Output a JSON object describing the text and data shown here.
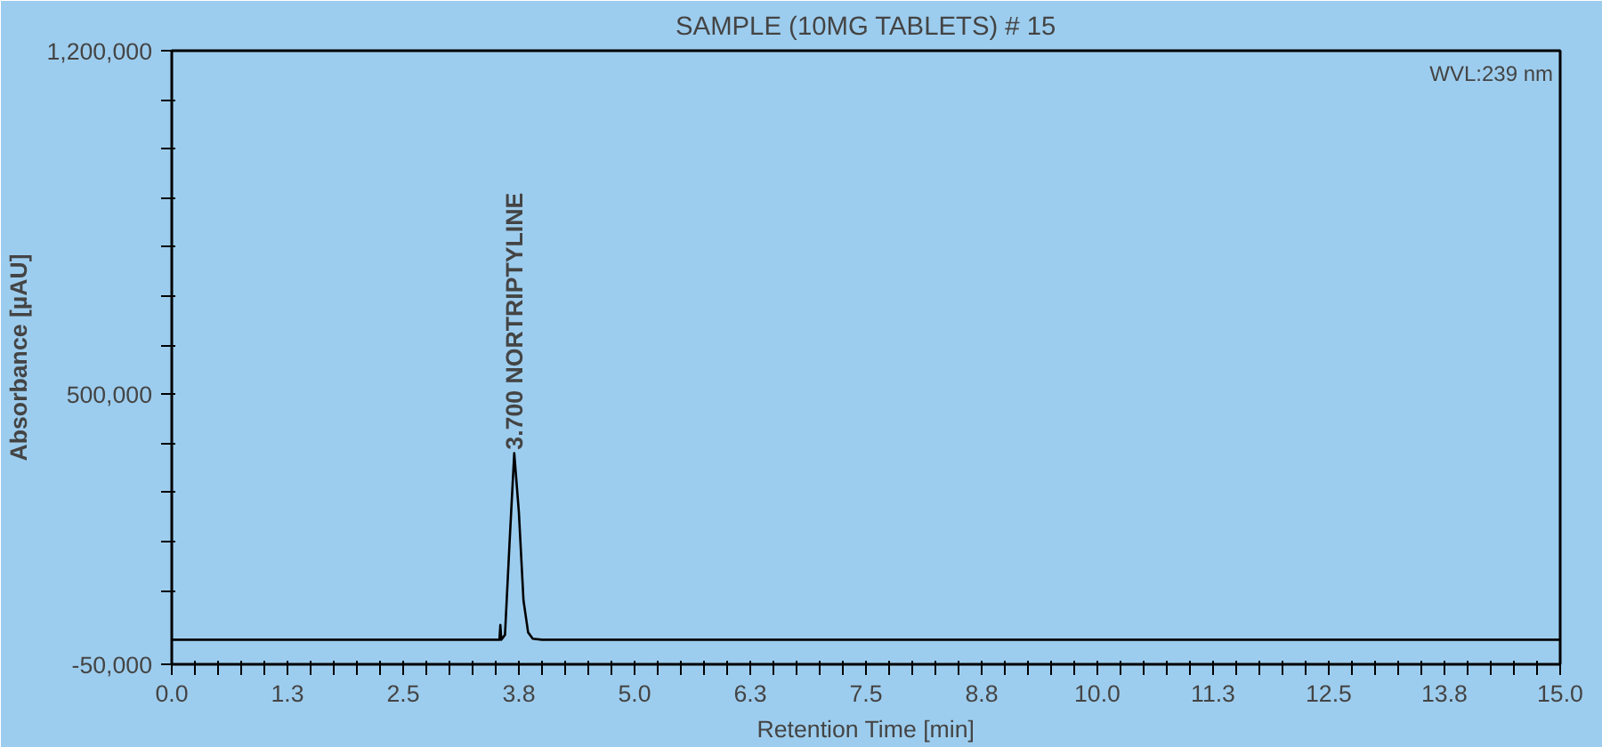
{
  "chart_data": {
    "type": "line",
    "title": "SAMPLE (10MG TABLETS) # 15",
    "xlabel": "Retention Time [min]",
    "ylabel": "Absorbance [µAU]",
    "series": [
      {
        "color": "#000000",
        "x": [
          0,
          3.5,
          3.54,
          3.55,
          3.56,
          3.6,
          3.65,
          3.7,
          3.75,
          3.8,
          3.85,
          3.9,
          4.0,
          15
        ],
        "values": [
          0,
          0,
          0,
          30000,
          0,
          10000,
          200000,
          380000,
          260000,
          80000,
          15000,
          2000,
          0,
          0
        ]
      }
    ],
    "xlim": [
      0,
      15
    ],
    "ylim": [
      -50000,
      1200000
    ],
    "xticks": [
      {
        "value": 0,
        "label": "0.0"
      },
      {
        "value": 0.25,
        "label": null
      },
      {
        "value": 0.5,
        "label": null
      },
      {
        "value": 0.75,
        "label": null
      },
      {
        "value": 1,
        "label": null
      },
      {
        "value": 1.25,
        "label": "1.3"
      },
      {
        "value": 1.5,
        "label": null
      },
      {
        "value": 1.75,
        "label": null
      },
      {
        "value": 2,
        "label": null
      },
      {
        "value": 2.25,
        "label": null
      },
      {
        "value": 2.5,
        "label": "2.5"
      },
      {
        "value": 2.75,
        "label": null
      },
      {
        "value": 3,
        "label": null
      },
      {
        "value": 3.25,
        "label": null
      },
      {
        "value": 3.5,
        "label": null
      },
      {
        "value": 3.75,
        "label": "3.8"
      },
      {
        "value": 4,
        "label": null
      },
      {
        "value": 4.25,
        "label": null
      },
      {
        "value": 4.5,
        "label": null
      },
      {
        "value": 4.75,
        "label": null
      },
      {
        "value": 5,
        "label": "5.0"
      },
      {
        "value": 5.25,
        "label": null
      },
      {
        "value": 5.5,
        "label": null
      },
      {
        "value": 5.75,
        "label": null
      },
      {
        "value": 6,
        "label": null
      },
      {
        "value": 6.25,
        "label": "6.3"
      },
      {
        "value": 6.5,
        "label": null
      },
      {
        "value": 6.75,
        "label": null
      },
      {
        "value": 7,
        "label": null
      },
      {
        "value": 7.25,
        "label": null
      },
      {
        "value": 7.5,
        "label": "7.5"
      },
      {
        "value": 7.75,
        "label": null
      },
      {
        "value": 8,
        "label": null
      },
      {
        "value": 8.25,
        "label": null
      },
      {
        "value": 8.5,
        "label": null
      },
      {
        "value": 8.75,
        "label": "8.8"
      },
      {
        "value": 9,
        "label": null
      },
      {
        "value": 9.25,
        "label": null
      },
      {
        "value": 9.5,
        "label": null
      },
      {
        "value": 9.75,
        "label": null
      },
      {
        "value": 10,
        "label": "10.0"
      },
      {
        "value": 10.25,
        "label": null
      },
      {
        "value": 10.5,
        "label": null
      },
      {
        "value": 10.75,
        "label": null
      },
      {
        "value": 11,
        "label": null
      },
      {
        "value": 11.25,
        "label": "11.3"
      },
      {
        "value": 11.5,
        "label": null
      },
      {
        "value": 11.75,
        "label": null
      },
      {
        "value": 12,
        "label": null
      },
      {
        "value": 12.25,
        "label": null
      },
      {
        "value": 12.5,
        "label": "12.5"
      },
      {
        "value": 12.75,
        "label": null
      },
      {
        "value": 13,
        "label": null
      },
      {
        "value": 13.25,
        "label": null
      },
      {
        "value": 13.5,
        "label": null
      },
      {
        "value": 13.75,
        "label": "13.8"
      },
      {
        "value": 14,
        "label": null
      },
      {
        "value": 14.25,
        "label": null
      },
      {
        "value": 14.5,
        "label": null
      },
      {
        "value": 14.75,
        "label": null
      },
      {
        "value": 15,
        "label": "15.0"
      }
    ],
    "yticks": [
      {
        "value": -50000,
        "label": "-50,000"
      },
      {
        "value": 100000,
        "label": null
      },
      {
        "value": 200000,
        "label": null
      },
      {
        "value": 300000,
        "label": null
      },
      {
        "value": 400000,
        "label": null
      },
      {
        "value": 500000,
        "label": "500,000"
      },
      {
        "value": 600000,
        "label": null
      },
      {
        "value": 700000,
        "label": null
      },
      {
        "value": 800000,
        "label": null
      },
      {
        "value": 900000,
        "label": null
      },
      {
        "value": 1000000,
        "label": null
      },
      {
        "value": 1100000,
        "label": null
      },
      {
        "value": 1200000,
        "label": "1,200,000"
      }
    ],
    "annotations": [
      {
        "text": "3.700 NORTRIPTYLINE",
        "x": 3.7,
        "y": 380000
      },
      "WVL:239 nm"
    ],
    "grid": false,
    "line_style": "solid",
    "marker": "none"
  }
}
